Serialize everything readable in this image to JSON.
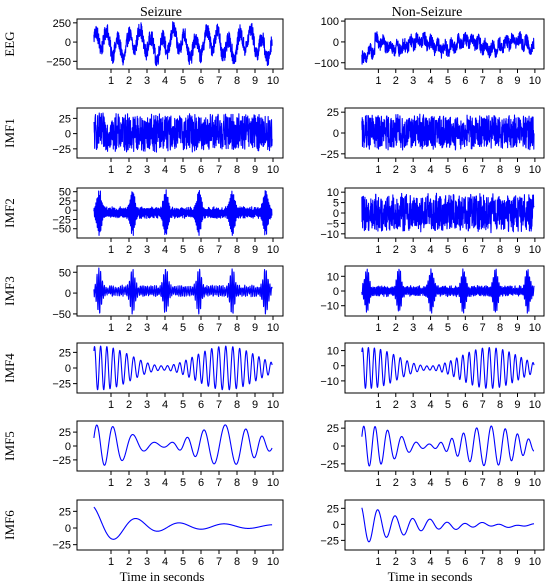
{
  "figure": {
    "column_titles": [
      "Seizure",
      "Non-Seizure"
    ],
    "row_labels": [
      "EEG",
      "IMF1",
      "IMF2",
      "IMF3",
      "IMF4",
      "IMF5",
      "IMF6"
    ],
    "xlabel": "Time in seconds",
    "line_color": "#0000ff"
  },
  "chart_data": [
    {
      "type": "line",
      "column": "Seizure",
      "row": "EEG",
      "ylabel": "EEG",
      "xlim": [
        0,
        10
      ],
      "x_ticks": [
        1,
        2,
        3,
        4,
        5,
        6,
        7,
        8,
        9,
        10
      ],
      "ylim": [
        -350,
        300
      ],
      "y_ticks": [
        250,
        0,
        -250
      ],
      "signal": {
        "kind": "noisy",
        "amp_min": -320,
        "amp_max": 270,
        "freq_hz": 6
      }
    },
    {
      "type": "line",
      "column": "Non-Seizure",
      "row": "EEG",
      "ylabel": "EEG",
      "xlim": [
        0,
        10
      ],
      "x_ticks": [
        1,
        2,
        3,
        4,
        5,
        6,
        7,
        8,
        9,
        10
      ],
      "ylim": [
        -130,
        110
      ],
      "y_ticks": [
        100,
        0,
        -100
      ],
      "signal": {
        "kind": "drift_noisy",
        "amp_min": -120,
        "amp_max": 95,
        "freq_hz": 8
      }
    },
    {
      "type": "line",
      "column": "Seizure",
      "row": "IMF1",
      "ylabel": "IMF1",
      "xlim": [
        0,
        10
      ],
      "x_ticks": [
        1,
        2,
        3,
        4,
        5,
        6,
        7,
        8,
        9,
        10
      ],
      "ylim": [
        -40,
        42
      ],
      "y_ticks": [
        25,
        0,
        -25
      ],
      "signal": {
        "kind": "dense",
        "amp_min": -33,
        "amp_max": 36,
        "freq_hz": 60
      }
    },
    {
      "type": "line",
      "column": "Non-Seizure",
      "row": "IMF1",
      "ylabel": "IMF1",
      "xlim": [
        0,
        10
      ],
      "x_ticks": [
        1,
        2,
        3,
        4,
        5,
        6,
        7,
        8,
        9,
        10
      ],
      "ylim": [
        -30,
        30
      ],
      "y_ticks": [
        25,
        0,
        -25
      ],
      "signal": {
        "kind": "dense",
        "amp_min": -22,
        "amp_max": 24,
        "freq_hz": 60
      }
    },
    {
      "type": "line",
      "column": "Seizure",
      "row": "IMF2",
      "ylabel": "IMF2",
      "xlim": [
        0,
        10
      ],
      "x_ticks": [
        1,
        2,
        3,
        4,
        5,
        6,
        7,
        8,
        9,
        10
      ],
      "ylim": [
        -75,
        60
      ],
      "y_ticks": [
        50,
        25,
        0,
        -25,
        -50
      ],
      "signal": {
        "kind": "bursts",
        "amp_min": -68,
        "amp_max": 55,
        "freq_hz": 20
      }
    },
    {
      "type": "line",
      "column": "Non-Seizure",
      "row": "IMF2",
      "ylabel": "IMF2",
      "xlim": [
        0,
        10
      ],
      "x_ticks": [
        1,
        2,
        3,
        4,
        5,
        6,
        7,
        8,
        9,
        10
      ],
      "ylim": [
        -12,
        12
      ],
      "y_ticks": [
        10,
        5,
        0,
        -5,
        -10
      ],
      "signal": {
        "kind": "dense",
        "amp_min": -10,
        "amp_max": 10,
        "freq_hz": 25
      }
    },
    {
      "type": "line",
      "column": "Seizure",
      "row": "IMF3",
      "ylabel": "IMF3",
      "xlim": [
        0,
        10
      ],
      "x_ticks": [
        1,
        2,
        3,
        4,
        5,
        6,
        7,
        8,
        9,
        10
      ],
      "ylim": [
        -55,
        65
      ],
      "y_ticks": [
        50,
        0,
        -50
      ],
      "signal": {
        "kind": "bursts",
        "amp_min": -50,
        "amp_max": 60,
        "freq_hz": 10
      }
    },
    {
      "type": "line",
      "column": "Non-Seizure",
      "row": "IMF3",
      "ylabel": "IMF3",
      "xlim": [
        0,
        10
      ],
      "x_ticks": [
        1,
        2,
        3,
        4,
        5,
        6,
        7,
        8,
        9,
        10
      ],
      "ylim": [
        -17,
        17
      ],
      "y_ticks": [
        10,
        0,
        -10
      ],
      "signal": {
        "kind": "bursts",
        "amp_min": -15,
        "amp_max": 15,
        "freq_hz": 12
      }
    },
    {
      "type": "line",
      "column": "Seizure",
      "row": "IMF4",
      "ylabel": "IMF4",
      "xlim": [
        0,
        10
      ],
      "x_ticks": [
        1,
        2,
        3,
        4,
        5,
        6,
        7,
        8,
        9,
        10
      ],
      "ylim": [
        -40,
        40
      ],
      "y_ticks": [
        25,
        0,
        -25
      ],
      "signal": {
        "kind": "oscillation",
        "amp_min": -35,
        "amp_max": 35,
        "freq_hz": 5
      }
    },
    {
      "type": "line",
      "column": "Non-Seizure",
      "row": "IMF4",
      "ylabel": "IMF4",
      "xlim": [
        0,
        10
      ],
      "x_ticks": [
        1,
        2,
        3,
        4,
        5,
        6,
        7,
        8,
        9,
        10
      ],
      "ylim": [
        -18,
        15
      ],
      "y_ticks": [
        10,
        0,
        -10
      ],
      "signal": {
        "kind": "oscillation",
        "amp_min": -15,
        "amp_max": 12,
        "freq_hz": 5
      }
    },
    {
      "type": "line",
      "column": "Seizure",
      "row": "IMF5",
      "ylabel": "IMF5",
      "xlim": [
        0,
        10
      ],
      "x_ticks": [
        1,
        2,
        3,
        4,
        5,
        6,
        7,
        8,
        9,
        10
      ],
      "ylim": [
        -45,
        45
      ],
      "y_ticks": [
        25,
        0,
        -25
      ],
      "signal": {
        "kind": "oscillation",
        "amp_min": -35,
        "amp_max": 38,
        "freq_hz": 1.8
      }
    },
    {
      "type": "line",
      "column": "Non-Seizure",
      "row": "IMF5",
      "ylabel": "IMF5",
      "xlim": [
        0,
        10
      ],
      "x_ticks": [
        1,
        2,
        3,
        4,
        5,
        6,
        7,
        8,
        9,
        10
      ],
      "ylim": [
        -35,
        35
      ],
      "y_ticks": [
        25,
        0,
        -25
      ],
      "signal": {
        "kind": "oscillation",
        "amp_min": -28,
        "amp_max": 28,
        "freq_hz": 2.5
      }
    },
    {
      "type": "line",
      "column": "Seizure",
      "row": "IMF6",
      "ylabel": "IMF6",
      "xlim": [
        0,
        10
      ],
      "x_ticks": [
        1,
        2,
        3,
        4,
        5,
        6,
        7,
        8,
        9,
        10
      ],
      "ylim": [
        -33,
        42
      ],
      "y_ticks": [
        25,
        0,
        -25
      ],
      "signal": {
        "kind": "damped",
        "amp_min": -30,
        "amp_max": 35,
        "freq_hz": 0.4
      }
    },
    {
      "type": "line",
      "column": "Non-Seizure",
      "row": "IMF6",
      "ylabel": "IMF6",
      "xlim": [
        0,
        10
      ],
      "x_ticks": [
        1,
        2,
        3,
        4,
        5,
        6,
        7,
        8,
        9,
        10
      ],
      "ylim": [
        -40,
        38
      ],
      "y_ticks": [
        25,
        0,
        -25
      ],
      "signal": {
        "kind": "damped",
        "amp_min": -35,
        "amp_max": 32,
        "freq_hz": 1.0
      }
    }
  ]
}
